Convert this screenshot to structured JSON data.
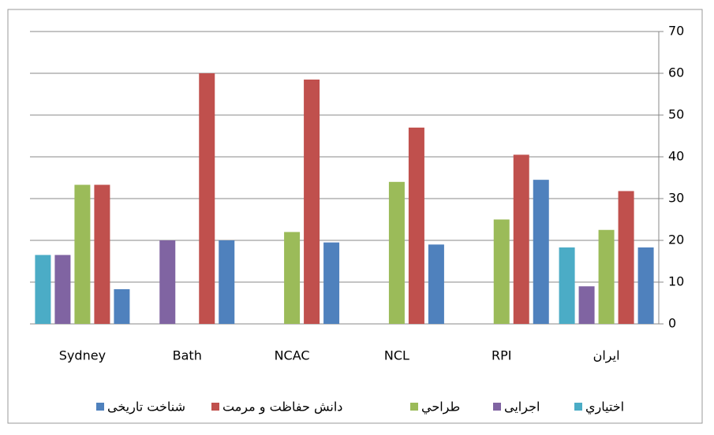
{
  "chart_data": {
    "type": "bar",
    "categories": [
      "Sydney",
      "Bath",
      "NCAC",
      "NCL",
      "RPI",
      "ایران"
    ],
    "series": [
      {
        "name": "اختياري",
        "color": "#4bacc6",
        "values": [
          16.5,
          0,
          0,
          0,
          0,
          18.3
        ]
      },
      {
        "name": "اجرايى",
        "color": "#8064a2",
        "values": [
          16.5,
          20,
          0,
          0,
          0,
          9
        ]
      },
      {
        "name": "طراحي",
        "color": "#9bbb59",
        "values": [
          33.3,
          0,
          22,
          34,
          25,
          22.5
        ]
      },
      {
        "name": "دانش حفاظت و مرمت",
        "color": "#c0504d",
        "values": [
          33.3,
          60,
          58.5,
          47,
          40.5,
          31.8
        ]
      },
      {
        "name": "شناخت تاريخى",
        "color": "#4f81bd",
        "values": [
          8.3,
          20,
          19.5,
          19,
          34.5,
          18.3
        ]
      }
    ],
    "ylim": [
      0,
      70
    ],
    "yticks": [
      0,
      10,
      20,
      30,
      40,
      50,
      60,
      70
    ],
    "grid": true,
    "legend": "bottom"
  }
}
